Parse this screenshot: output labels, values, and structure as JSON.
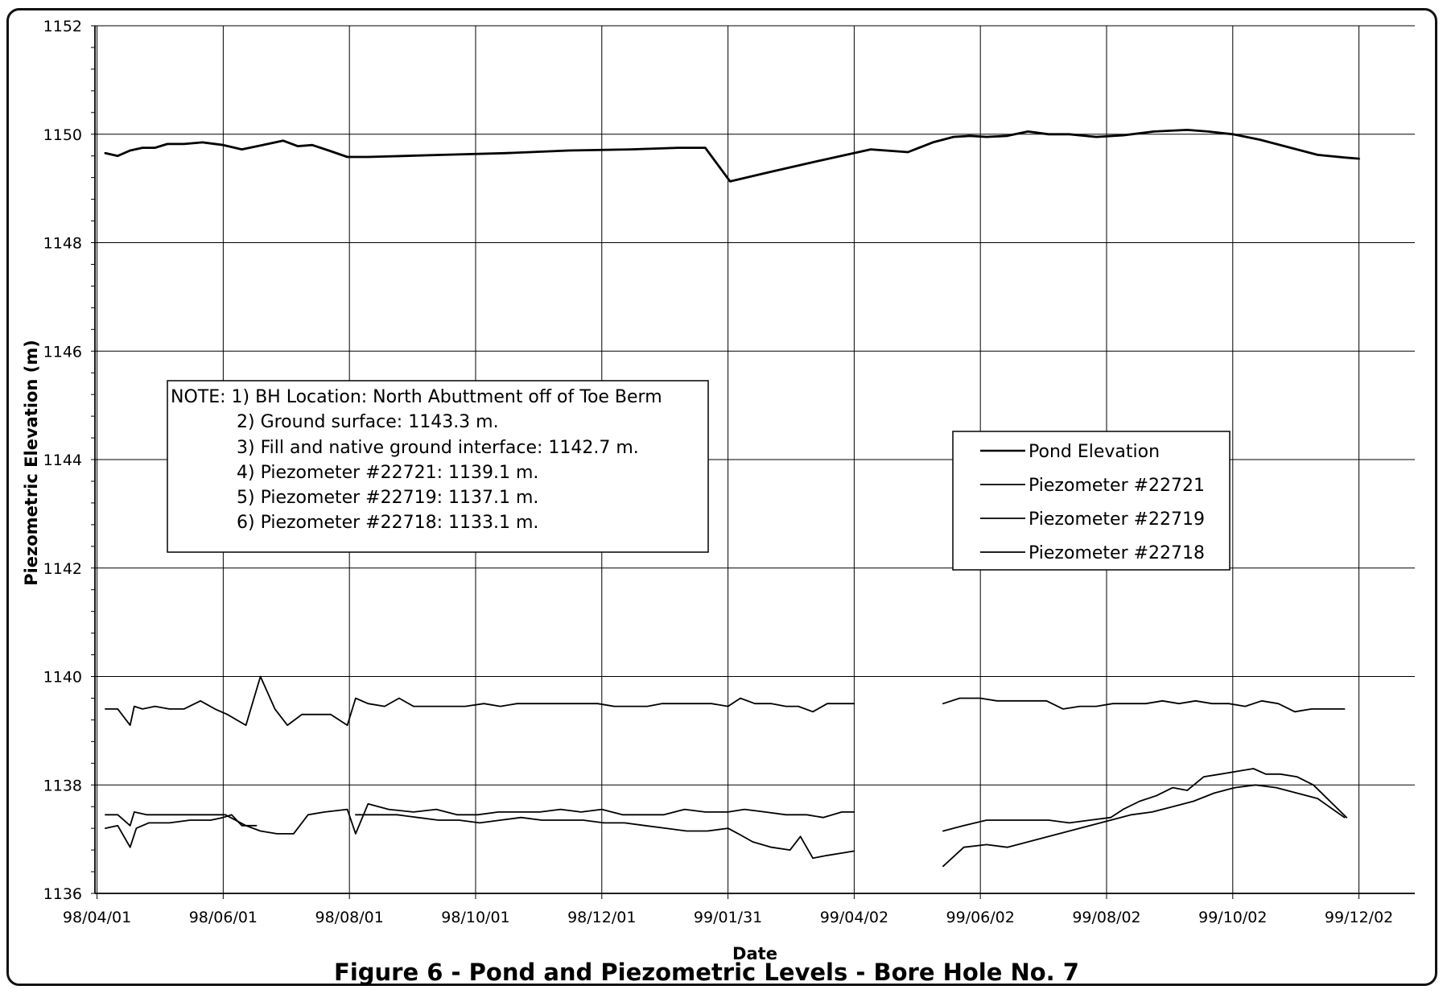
{
  "chart_data": {
    "type": "line",
    "title": "Figure 6 - Pond and Piezometric Levels - Bore Hole No. 7",
    "xlabel": "Date",
    "ylabel": "Piezometric Elevation (m)",
    "xlim": [
      "1998-03-31",
      "1999-12-29"
    ],
    "ylim": [
      1136,
      1152
    ],
    "x_ticks": [
      "98/04/01",
      "98/06/01",
      "98/08/01",
      "98/10/01",
      "98/12/01",
      "99/01/31",
      "99/04/02",
      "99/06/02",
      "99/08/02",
      "99/10/02",
      "99/12/02"
    ],
    "y_ticks": [
      "1136",
      "1138",
      "1140",
      "1142",
      "1144",
      "1146",
      "1148",
      "1150",
      "1152"
    ],
    "grid": true,
    "legend_position": "right",
    "note_lines": [
      "NOTE: 1) BH Location: North Abuttment off of Toe Berm",
      "2) Ground surface: 1143.3 m.",
      "3) Fill and native ground interface: 1142.7 m.",
      "4) Piezometer #22721: 1139.1 m.",
      "5) Piezometer #22719: 1137.1 m.",
      "6) Piezometer #22718: 1133.1 m."
    ],
    "series": [
      {
        "name": "Pond Elevation",
        "segments": [
          {
            "x": [
              "1998-04-05",
              "1998-04-11",
              "1998-04-17",
              "1998-04-23",
              "1998-04-29",
              "1998-05-05",
              "1998-05-13",
              "1998-05-22",
              "1998-06-01",
              "1998-06-10",
              "1998-06-20",
              "1998-06-30",
              "1998-07-07",
              "1998-07-14",
              "1998-07-22",
              "1998-07-31",
              "1998-08-10",
              "1998-09-15",
              "1998-10-15",
              "1998-11-15",
              "1998-12-15",
              "1999-01-07",
              "1999-01-20",
              "1999-02-01",
              "1999-02-20",
              "1999-03-15",
              "1999-04-10",
              "1999-04-28",
              "1999-05-10",
              "1999-05-20",
              "1999-05-28",
              "1999-06-05",
              "1999-06-15",
              "1999-06-25",
              "1999-07-05",
              "1999-07-15",
              "1999-07-28",
              "1999-08-10",
              "1999-08-25",
              "1999-09-10",
              "1999-09-20",
              "1999-10-02",
              "1999-10-15",
              "1999-10-30",
              "1999-11-12",
              "1999-11-25",
              "1999-12-02"
            ],
            "y": [
              1149.65,
              1149.6,
              1149.7,
              1149.75,
              1149.75,
              1149.82,
              1149.82,
              1149.85,
              1149.8,
              1149.72,
              1149.8,
              1149.88,
              1149.78,
              1149.8,
              1149.7,
              1149.58,
              1149.58,
              1149.62,
              1149.65,
              1149.7,
              1149.72,
              1149.75,
              1149.75,
              1149.13,
              1149.3,
              1149.5,
              1149.72,
              1149.67,
              1149.85,
              1149.95,
              1149.97,
              1149.95,
              1149.97,
              1150.05,
              1150.0,
              1150.0,
              1149.95,
              1149.98,
              1150.05,
              1150.08,
              1150.05,
              1150.0,
              1149.9,
              1149.75,
              1149.62,
              1149.57,
              1149.55
            ]
          }
        ]
      },
      {
        "name": "Piezometer #22721",
        "segments": [
          {
            "x": [
              "1998-04-05",
              "1998-04-11",
              "1998-04-17",
              "1998-04-19",
              "1998-04-23",
              "1998-04-29",
              "1998-05-06",
              "1998-05-13",
              "1998-05-21",
              "1998-05-28",
              "1998-06-03",
              "1998-06-12",
              "1998-06-19",
              "1998-06-26",
              "1998-07-02",
              "1998-07-09",
              "1998-07-16",
              "1998-07-23",
              "1998-07-31",
              "1998-08-04",
              "1998-08-10",
              "1998-08-18",
              "1998-08-25",
              "1998-09-01",
              "1998-09-09",
              "1998-09-18",
              "1998-09-26",
              "1998-10-05",
              "1998-10-13",
              "1998-10-21",
              "1998-10-28",
              "1998-11-06",
              "1998-11-13",
              "1998-11-21",
              "1998-11-29",
              "1998-12-07",
              "1998-12-15",
              "1998-12-23",
              "1998-12-30",
              "1999-01-07",
              "1999-01-15",
              "1999-01-23",
              "1999-01-31",
              "1999-02-06",
              "1999-02-13",
              "1999-02-21",
              "1999-02-28",
              "1999-03-06",
              "1999-03-13",
              "1999-03-20",
              "1999-03-27",
              "1999-04-02"
            ],
            "y": [
              1139.4,
              1139.4,
              1139.1,
              1139.45,
              1139.4,
              1139.45,
              1139.4,
              1139.4,
              1139.55,
              1139.4,
              1139.3,
              1139.1,
              1140.0,
              1139.4,
              1139.1,
              1139.3,
              1139.3,
              1139.3,
              1139.1,
              1139.6,
              1139.5,
              1139.45,
              1139.6,
              1139.45,
              1139.45,
              1139.45,
              1139.45,
              1139.5,
              1139.45,
              1139.5,
              1139.5,
              1139.5,
              1139.5,
              1139.5,
              1139.5,
              1139.45,
              1139.45,
              1139.45,
              1139.5,
              1139.5,
              1139.5,
              1139.5,
              1139.45,
              1139.6,
              1139.5,
              1139.5,
              1139.45,
              1139.45,
              1139.35,
              1139.5,
              1139.5,
              1139.5
            ]
          },
          {
            "x": [
              "1999-05-15",
              "1999-05-23",
              "1999-06-02",
              "1999-06-10",
              "1999-06-18",
              "1999-06-26",
              "1999-07-04",
              "1999-07-12",
              "1999-07-20",
              "1999-07-28",
              "1999-08-05",
              "1999-08-13",
              "1999-08-21",
              "1999-08-29",
              "1999-09-06",
              "1999-09-14",
              "1999-09-22",
              "1999-09-30",
              "1999-10-08",
              "1999-10-16",
              "1999-10-24",
              "1999-11-01",
              "1999-11-09",
              "1999-11-17",
              "1999-11-25"
            ],
            "y": [
              1139.5,
              1139.6,
              1139.6,
              1139.55,
              1139.55,
              1139.55,
              1139.55,
              1139.4,
              1139.45,
              1139.45,
              1139.5,
              1139.5,
              1139.5,
              1139.55,
              1139.5,
              1139.55,
              1139.5,
              1139.5,
              1139.45,
              1139.55,
              1139.5,
              1139.35,
              1139.4,
              1139.4,
              1139.4
            ]
          }
        ]
      },
      {
        "name": "Piezometer #22719",
        "segments": [
          {
            "x": [
              "1998-04-05",
              "1998-04-11",
              "1998-04-17",
              "1998-04-19",
              "1998-04-25",
              "1998-05-05",
              "1998-05-15",
              "1998-05-25",
              "1998-06-02",
              "1998-06-12",
              "1998-06-19",
              "1998-06-27",
              "1998-07-05",
              "1998-07-12",
              "1998-07-20",
              "1998-07-31",
              "1998-08-04",
              "1998-08-10",
              "1998-08-20",
              "1998-09-01",
              "1998-09-12",
              "1998-09-22",
              "1998-10-02",
              "1998-10-12",
              "1998-10-22",
              "1998-11-01",
              "1998-11-11",
              "1998-11-21",
              "1998-12-01",
              "1998-12-11",
              "1998-12-21",
              "1998-12-31",
              "1999-01-10",
              "1999-01-20",
              "1999-01-31",
              "1999-02-08",
              "1999-02-18",
              "1999-02-28",
              "1999-03-10",
              "1999-03-18",
              "1999-03-27",
              "1999-04-02"
            ],
            "y": [
              1137.45,
              1137.45,
              1137.25,
              1137.5,
              1137.45,
              1137.45,
              1137.45,
              1137.45,
              1137.45,
              1137.25,
              1137.15,
              1137.1,
              1137.1,
              1137.45,
              1137.5,
              1137.55,
              1137.1,
              1137.65,
              1137.55,
              1137.5,
              1137.55,
              1137.45,
              1137.45,
              1137.5,
              1137.5,
              1137.5,
              1137.55,
              1137.5,
              1137.55,
              1137.45,
              1137.45,
              1137.45,
              1137.55,
              1137.5,
              1137.5,
              1137.55,
              1137.5,
              1137.45,
              1137.45,
              1137.4,
              1137.5,
              1137.5
            ]
          },
          {
            "x": [
              "1999-05-15",
              "1999-05-25",
              "1999-06-05",
              "1999-06-15",
              "1999-06-25",
              "1999-07-05",
              "1999-07-15",
              "1999-07-25",
              "1999-08-04",
              "1999-08-14",
              "1999-08-24",
              "1999-09-03",
              "1999-09-13",
              "1999-09-23",
              "1999-10-03",
              "1999-10-13",
              "1999-10-23",
              "1999-11-02",
              "1999-11-12",
              "1999-11-25"
            ],
            "y": [
              1136.5,
              1136.85,
              1136.9,
              1136.85,
              1136.95,
              1137.05,
              1137.15,
              1137.25,
              1137.35,
              1137.45,
              1137.5,
              1137.6,
              1137.7,
              1137.85,
              1137.95,
              1138.0,
              1137.95,
              1137.85,
              1137.75,
              1137.4
            ]
          }
        ]
      },
      {
        "name": "Piezometer #22718",
        "segments": [
          {
            "x": [
              "1998-04-05",
              "1998-04-11",
              "1998-04-17",
              "1998-04-20",
              "1998-04-26",
              "1998-05-06",
              "1998-05-16",
              "1998-05-26",
              "1998-06-01",
              "1998-06-05",
              "1998-06-10",
              "1998-06-17"
            ],
            "y": [
              1137.2,
              1137.25,
              1136.85,
              1137.2,
              1137.3,
              1137.3,
              1137.35,
              1137.35,
              1137.4,
              1137.45,
              1137.25,
              1137.25
            ]
          },
          {
            "x": [
              "1998-08-04",
              "1998-08-14",
              "1998-08-24",
              "1998-09-03",
              "1998-09-13",
              "1998-09-23",
              "1998-10-03",
              "1998-10-13",
              "1998-10-23",
              "1998-11-02",
              "1998-11-12",
              "1998-11-22",
              "1998-12-02",
              "1998-12-12",
              "1998-12-22",
              "1999-01-01",
              "1999-01-11",
              "1999-01-21",
              "1999-01-31",
              "1999-02-05",
              "1999-02-12",
              "1999-02-21",
              "1999-03-02",
              "1999-03-07",
              "1999-03-13",
              "1999-03-20",
              "1999-03-28",
              "1999-04-02"
            ],
            "y": [
              1137.45,
              1137.45,
              1137.45,
              1137.4,
              1137.35,
              1137.35,
              1137.3,
              1137.35,
              1137.4,
              1137.35,
              1137.35,
              1137.35,
              1137.3,
              1137.3,
              1137.25,
              1137.2,
              1137.15,
              1137.15,
              1137.2,
              1137.1,
              1136.95,
              1136.85,
              1136.8,
              1137.05,
              1136.65,
              1136.7,
              1136.75,
              1136.78
            ]
          },
          {
            "x": [
              "1999-05-15",
              "1999-05-25",
              "1999-06-05",
              "1999-06-15",
              "1999-06-25",
              "1999-07-05",
              "1999-07-15",
              "1999-07-25",
              "1999-08-04",
              "1999-08-10",
              "1999-08-18",
              "1999-08-26",
              "1999-09-03",
              "1999-09-10",
              "1999-09-18",
              "1999-09-26",
              "1999-10-04",
              "1999-10-12",
              "1999-10-18",
              "1999-10-25",
              "1999-11-02",
              "1999-11-10",
              "1999-11-18",
              "1999-11-26"
            ],
            "y": [
              1137.15,
              1137.25,
              1137.35,
              1137.35,
              1137.35,
              1137.35,
              1137.3,
              1137.35,
              1137.4,
              1137.55,
              1137.7,
              1137.8,
              1137.95,
              1137.9,
              1138.15,
              1138.2,
              1138.25,
              1138.3,
              1138.2,
              1138.2,
              1138.15,
              1138.0,
              1137.7,
              1137.4
            ]
          }
        ]
      }
    ]
  }
}
